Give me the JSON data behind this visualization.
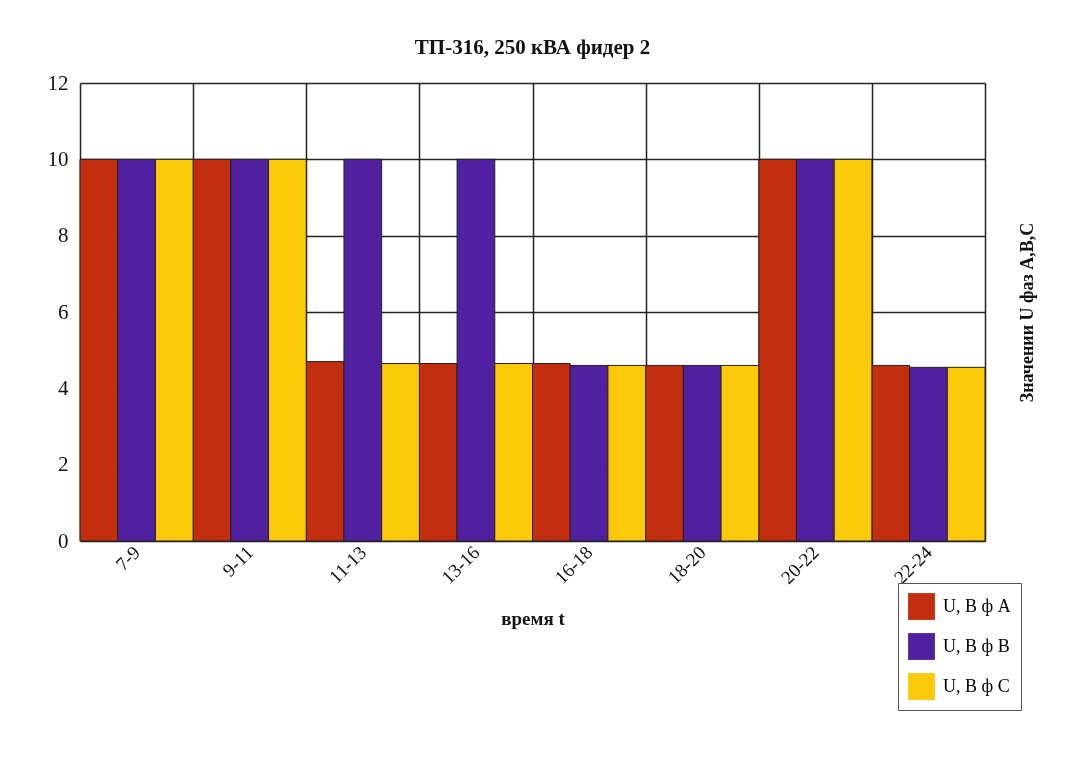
{
  "chart_data": {
    "type": "bar",
    "title": "ТП-316, 250 кВА фидер 2",
    "xlabel": "время t",
    "ylabel": "Значении U фаз A,B,C",
    "categories": [
      "7-9",
      "9-11",
      "11-13",
      "13-16",
      "16-18",
      "18-20",
      "20-22",
      "22-24"
    ],
    "series": [
      {
        "name": "U, В ф А",
        "color": "#c22e0e",
        "values": [
          10,
          10,
          4.7,
          4.65,
          4.65,
          4.6,
          10,
          4.6
        ]
      },
      {
        "name": "U, В ф В",
        "color": "#5020a0",
        "values": [
          10,
          10,
          10,
          10,
          4.6,
          4.6,
          10,
          4.55
        ]
      },
      {
        "name": "U, В ф С",
        "color": "#fcc80a",
        "values": [
          10,
          10,
          4.65,
          4.65,
          4.6,
          4.6,
          10,
          4.55
        ]
      }
    ],
    "ylim": [
      0,
      12
    ],
    "yticks": [
      0,
      2,
      4,
      6,
      8,
      10,
      12
    ],
    "grid": true,
    "legend": "bottom right"
  }
}
